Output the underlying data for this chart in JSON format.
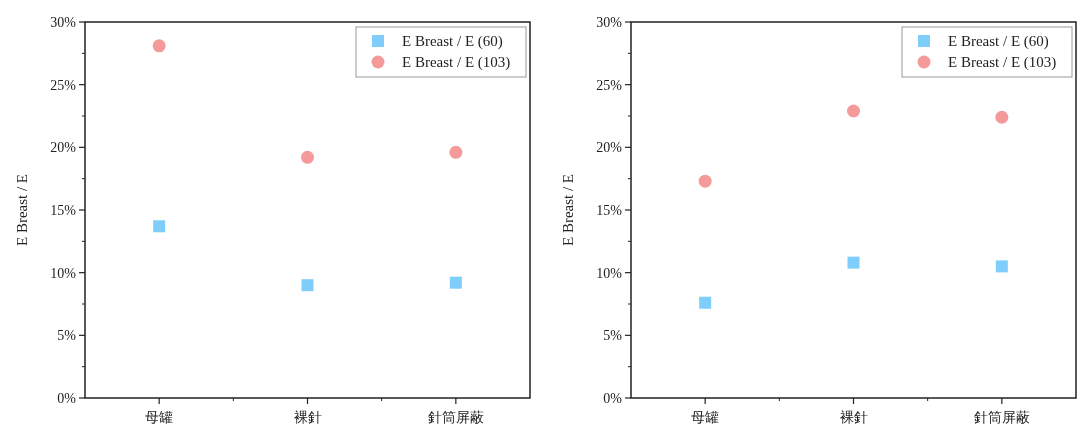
{
  "chart_data": [
    {
      "type": "scatter",
      "ylabel": "E Breast / E",
      "categories": [
        "母罐",
        "裸針",
        "針筒屏蔽"
      ],
      "ylim": [
        0,
        30
      ],
      "yticks": [
        {
          "value": 0,
          "label": "0%"
        },
        {
          "value": 5,
          "label": "5%"
        },
        {
          "value": 10,
          "label": "10%"
        },
        {
          "value": 15,
          "label": "15%"
        },
        {
          "value": 20,
          "label": "20%"
        },
        {
          "value": 25,
          "label": "25%"
        },
        {
          "value": 30,
          "label": "30%"
        }
      ],
      "grid": false,
      "legend": "top right",
      "series": [
        {
          "name": "E Breast / E (60)",
          "color": "#7fcdfb",
          "marker": "square",
          "values": [
            13.7,
            9.0,
            9.2
          ]
        },
        {
          "name": "E Breast / E (103)",
          "color": "#f49a9a",
          "marker": "circle",
          "values": [
            28.1,
            19.2,
            19.6
          ]
        }
      ]
    },
    {
      "type": "scatter",
      "ylabel": "E Breast / E",
      "categories": [
        "母罐",
        "裸針",
        "針筒屏蔽"
      ],
      "ylim": [
        0,
        30
      ],
      "yticks": [
        {
          "value": 0,
          "label": "0%"
        },
        {
          "value": 5,
          "label": "5%"
        },
        {
          "value": 10,
          "label": "10%"
        },
        {
          "value": 15,
          "label": "15%"
        },
        {
          "value": 20,
          "label": "20%"
        },
        {
          "value": 25,
          "label": "25%"
        },
        {
          "value": 30,
          "label": "30%"
        }
      ],
      "grid": false,
      "legend": "top right",
      "series": [
        {
          "name": "E Breast / E (60)",
          "color": "#7fcdfb",
          "marker": "square",
          "values": [
            7.6,
            10.8,
            10.5
          ]
        },
        {
          "name": "E Breast / E (103)",
          "color": "#f49a9a",
          "marker": "circle",
          "values": [
            17.3,
            22.9,
            22.4
          ]
        }
      ]
    }
  ]
}
